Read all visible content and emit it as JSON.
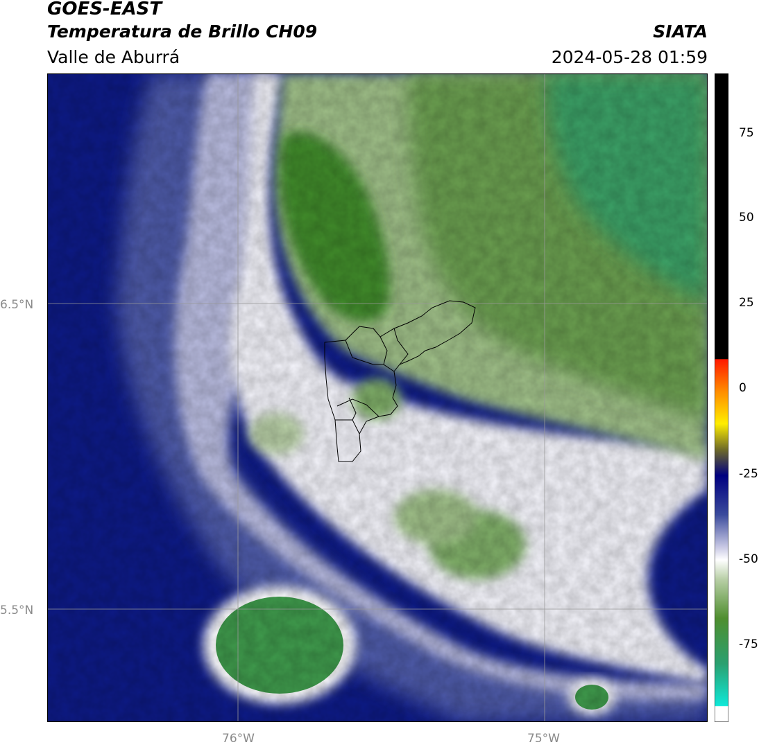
{
  "header": {
    "satellite": "GOES-EAST",
    "product": "Temperatura de Brillo CH09",
    "organization": "SIATA",
    "region": "Valle de Aburrá",
    "datetime": "2024-05-28 01:59"
  },
  "axes": {
    "lat_labels": [
      "6.5°N",
      "5.5°N"
    ],
    "lon_labels": [
      "76°W",
      "75°W"
    ]
  },
  "colorbar": {
    "tick_labels": [
      "75",
      "50",
      "25",
      "0",
      "-25",
      "-50",
      "-75"
    ],
    "colors": {
      "black": "#000000",
      "red": "#ff1a00",
      "orange": "#ff8c00",
      "yellow": "#ffee00",
      "olive": "#6e6a28",
      "navy": "#000080",
      "blue": "#3a4a9c",
      "lavender": "#c8c8e4",
      "white": "#ffffff",
      "green_light": "#b8cfa6",
      "green": "#4f8e2f",
      "teal": "#2aa070",
      "cyan": "#10e8d8"
    }
  }
}
